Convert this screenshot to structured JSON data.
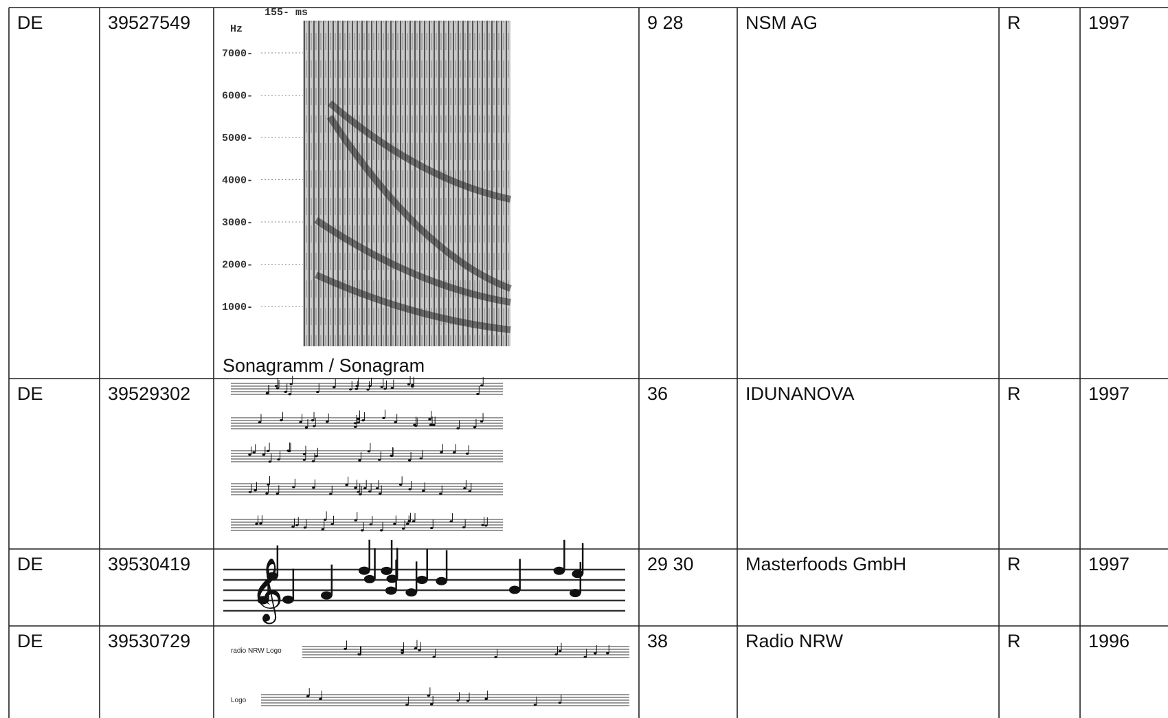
{
  "table": {
    "rows": [
      {
        "country": "DE",
        "number": "39527549",
        "classes": "9 28",
        "owner": "NSM AG",
        "kind": "R",
        "year": "1997"
      },
      {
        "country": "DE",
        "number": "39529302",
        "classes": "36",
        "owner": "IDUNANOVA",
        "kind": "R",
        "year": "1997"
      },
      {
        "country": "DE",
        "number": "39530419",
        "classes": "29 30",
        "owner": "Masterfoods GmbH",
        "kind": "R",
        "year": "1997"
      },
      {
        "country": "DE",
        "number": "39530729",
        "classes": "38",
        "owner": "Radio NRW",
        "kind": "R",
        "year": "1996"
      }
    ]
  },
  "sonagram": {
    "caption": "Sonagramm / Sonagram",
    "unit": "Hz",
    "time": "155- ms",
    "ticks": [
      "7000-",
      "6000-",
      "5000-",
      "4000-",
      "3000-",
      "2000-",
      "1000-"
    ]
  },
  "logo": {
    "label_1": "radio NRW Logo",
    "label_2": "Logo"
  }
}
